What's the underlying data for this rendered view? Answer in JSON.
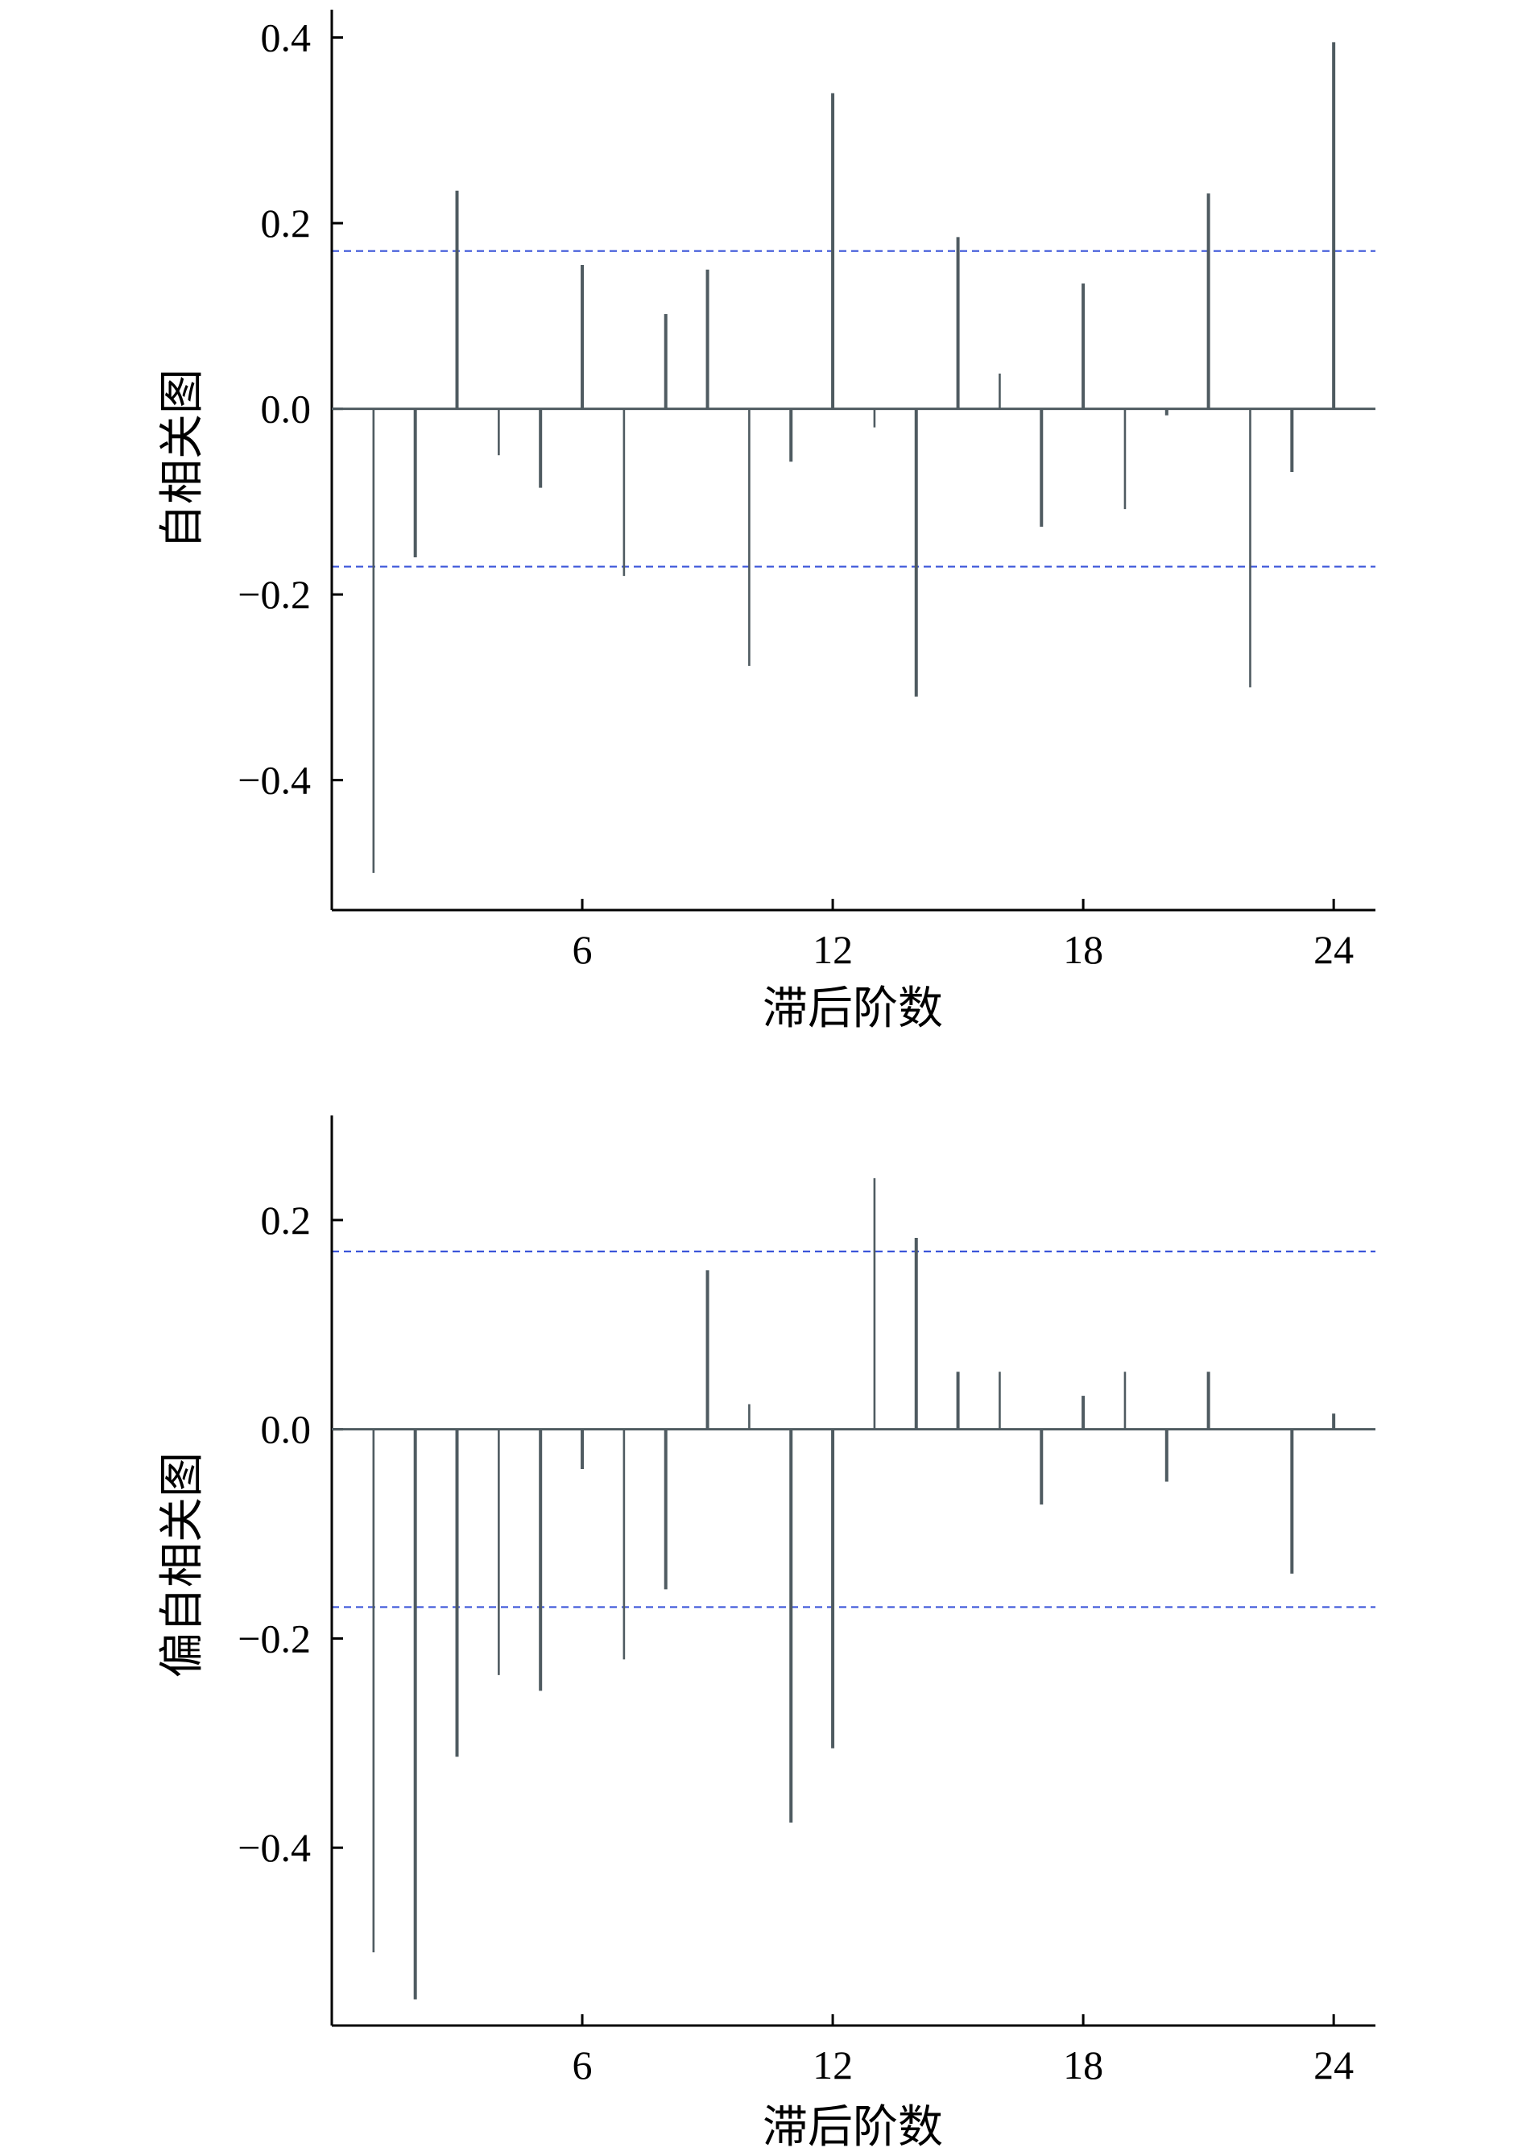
{
  "colors": {
    "stem": "#4f5b61",
    "confidence": "#3b55d9",
    "axis": "#000000"
  },
  "chart_data": [
    {
      "type": "bar",
      "subtype": "stem",
      "title": "",
      "xlabel": "滞后阶数",
      "ylabel": "自相关图",
      "xlim": [
        0,
        25
      ],
      "ylim": [
        -0.54,
        0.43
      ],
      "xticks": [
        6,
        12,
        18,
        24
      ],
      "xtick_labels": [
        "6",
        "12",
        "18",
        "24"
      ],
      "yticks": [
        -0.4,
        -0.2,
        0.0,
        0.2,
        0.4
      ],
      "ytick_labels": [
        "−0.4",
        "−0.2",
        "0.0",
        "0.2",
        "0.4"
      ],
      "confidence_bounds": [
        0.17,
        -0.17
      ],
      "lags": [
        1,
        2,
        3,
        4,
        5,
        6,
        7,
        8,
        9,
        10,
        11,
        12,
        13,
        14,
        15,
        16,
        17,
        18,
        19,
        20,
        21,
        22,
        23,
        24
      ],
      "values": [
        -0.5,
        -0.16,
        0.235,
        -0.05,
        -0.085,
        0.155,
        -0.18,
        0.102,
        0.15,
        -0.277,
        -0.057,
        0.34,
        -0.02,
        -0.31,
        0.185,
        0.038,
        -0.127,
        0.135,
        -0.108,
        -0.007,
        0.232,
        -0.3,
        -0.068,
        0.395
      ]
    },
    {
      "type": "bar",
      "subtype": "stem",
      "title": "",
      "xlabel": "滞后阶数",
      "ylabel": "偏自相关图",
      "xlim": [
        0,
        25
      ],
      "ylim": [
        -0.57,
        0.3
      ],
      "xticks": [
        6,
        12,
        18,
        24
      ],
      "xtick_labels": [
        "6",
        "12",
        "18",
        "24"
      ],
      "yticks": [
        -0.4,
        -0.2,
        0.0,
        0.2
      ],
      "ytick_labels": [
        "−0.4",
        "−0.2",
        "0.0",
        "0.2"
      ],
      "confidence_bounds": [
        0.17,
        -0.17
      ],
      "lags": [
        1,
        2,
        3,
        4,
        5,
        6,
        7,
        8,
        9,
        10,
        11,
        12,
        13,
        14,
        15,
        16,
        17,
        18,
        19,
        20,
        21,
        22,
        23,
        24
      ],
      "values": [
        -0.5,
        -0.545,
        -0.313,
        -0.235,
        -0.25,
        -0.038,
        -0.22,
        -0.153,
        0.152,
        0.024,
        -0.376,
        -0.305,
        0.24,
        0.183,
        0.055,
        0.055,
        -0.072,
        0.032,
        0.055,
        -0.05,
        0.055,
        0.0,
        -0.138,
        0.015
      ]
    }
  ]
}
